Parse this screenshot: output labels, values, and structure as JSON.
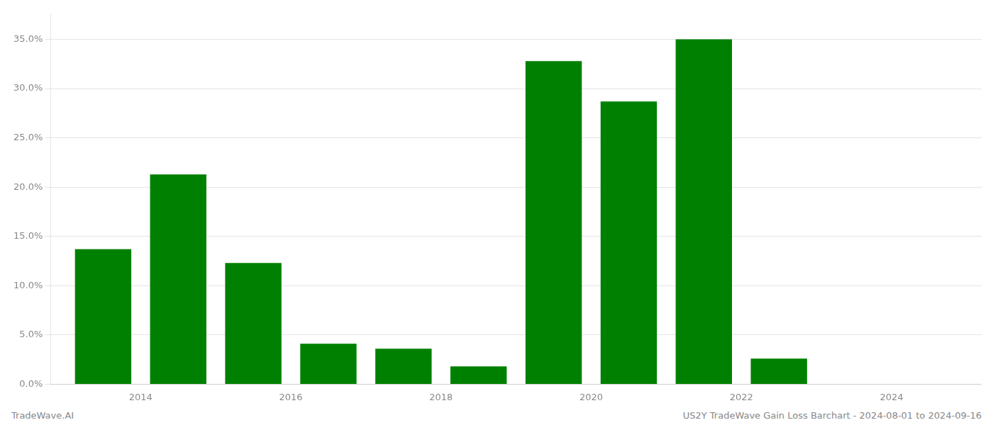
{
  "chart_data": {
    "type": "bar",
    "x": [
      2013,
      2014,
      2015,
      2016,
      2017,
      2018,
      2019,
      2020,
      2021,
      2022,
      2023
    ],
    "values": [
      0.137,
      0.213,
      0.123,
      0.041,
      0.036,
      0.018,
      0.328,
      0.287,
      0.35,
      0.026,
      0.0
    ],
    "color": "#008000",
    "xlim": [
      2012.3,
      2024.7
    ],
    "xticks": [
      {
        "value": 2013.5,
        "label": "2014"
      },
      {
        "value": 2015.5,
        "label": "2016"
      },
      {
        "value": 2017.5,
        "label": "2018"
      },
      {
        "value": 2019.5,
        "label": "2020"
      },
      {
        "value": 2021.5,
        "label": "2022"
      },
      {
        "value": 2023.5,
        "label": "2024"
      }
    ],
    "ylim": [
      0.0,
      0.375
    ],
    "yticks": [
      {
        "value": 0.0,
        "label": "0.0%"
      },
      {
        "value": 0.05,
        "label": "5.0%"
      },
      {
        "value": 0.1,
        "label": "10.0%"
      },
      {
        "value": 0.15,
        "label": "15.0%"
      },
      {
        "value": 0.2,
        "label": "20.0%"
      },
      {
        "value": 0.25,
        "label": "25.0%"
      },
      {
        "value": 0.3,
        "label": "30.0%"
      },
      {
        "value": 0.35,
        "label": "35.0%"
      }
    ],
    "grid": true,
    "annotations": [
      "TradeWave.AI",
      "US2Y TradeWave Gain Loss Barchart - 2024-08-01 to 2024-09-16"
    ]
  }
}
